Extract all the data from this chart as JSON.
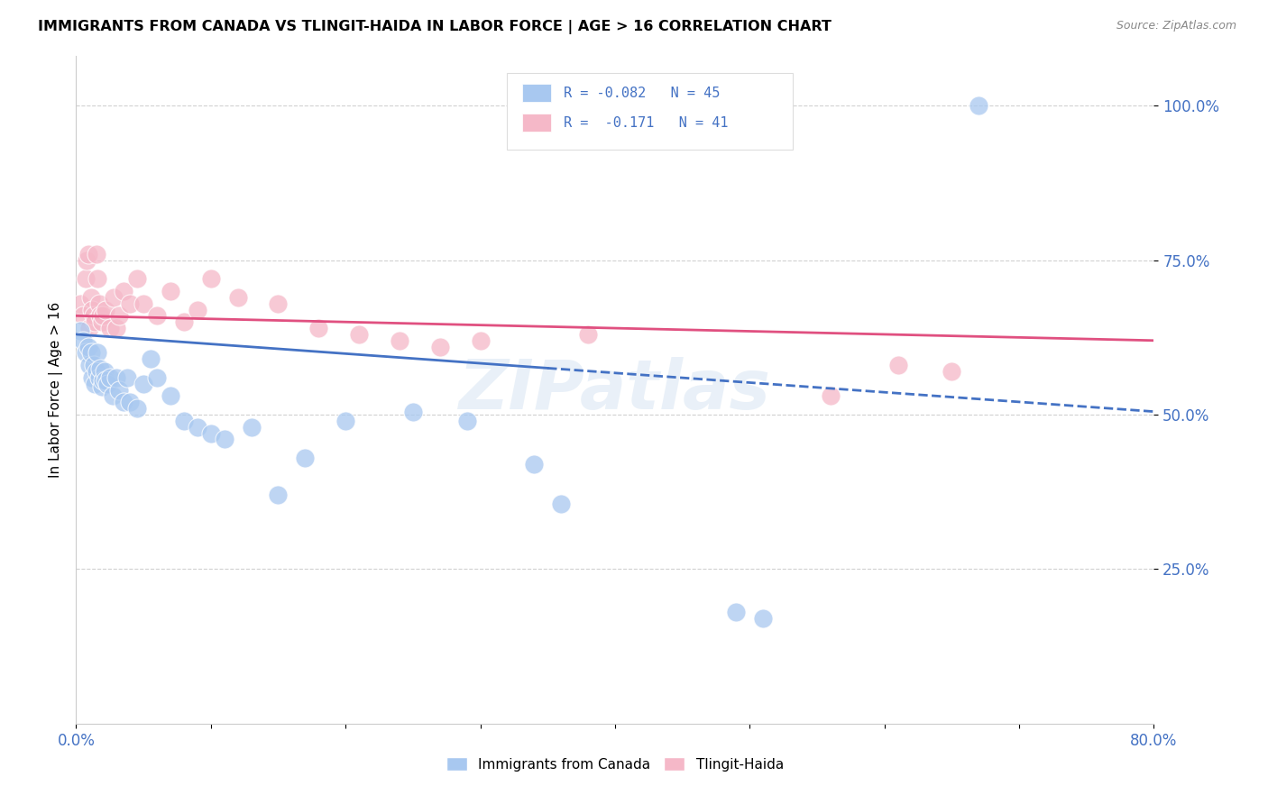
{
  "title": "IMMIGRANTS FROM CANADA VS TLINGIT-HAIDA IN LABOR FORCE | AGE > 16 CORRELATION CHART",
  "source": "Source: ZipAtlas.com",
  "ylabel": "In Labor Force | Age > 16",
  "xlim": [
    0.0,
    0.8
  ],
  "ylim": [
    0.0,
    1.08
  ],
  "yticks": [
    0.25,
    0.5,
    0.75,
    1.0
  ],
  "ytick_labels": [
    "25.0%",
    "50.0%",
    "75.0%",
    "100.0%"
  ],
  "xticks": [
    0.0,
    0.1,
    0.2,
    0.3,
    0.4,
    0.5,
    0.6,
    0.7,
    0.8
  ],
  "xtick_labels": [
    "0.0%",
    "",
    "",
    "",
    "",
    "",
    "",
    "",
    "80.0%"
  ],
  "r_canada": -0.082,
  "n_canada": 45,
  "r_tlingit": -0.171,
  "n_tlingit": 41,
  "blue_color": "#a8c8f0",
  "pink_color": "#f5b8c8",
  "trend_blue": "#4472c4",
  "trend_pink": "#e05080",
  "canada_scatter_x": [
    0.003,
    0.005,
    0.007,
    0.009,
    0.01,
    0.011,
    0.012,
    0.013,
    0.014,
    0.015,
    0.016,
    0.017,
    0.018,
    0.019,
    0.02,
    0.021,
    0.022,
    0.023,
    0.025,
    0.027,
    0.03,
    0.032,
    0.035,
    0.038,
    0.04,
    0.045,
    0.05,
    0.055,
    0.06,
    0.07,
    0.08,
    0.09,
    0.1,
    0.11,
    0.13,
    0.15,
    0.17,
    0.2,
    0.25,
    0.29,
    0.34,
    0.36,
    0.49,
    0.51,
    0.67
  ],
  "canada_scatter_y": [
    0.635,
    0.62,
    0.6,
    0.61,
    0.58,
    0.6,
    0.56,
    0.58,
    0.55,
    0.57,
    0.6,
    0.56,
    0.575,
    0.545,
    0.555,
    0.57,
    0.555,
    0.55,
    0.56,
    0.53,
    0.56,
    0.54,
    0.52,
    0.56,
    0.52,
    0.51,
    0.55,
    0.59,
    0.56,
    0.53,
    0.49,
    0.48,
    0.47,
    0.46,
    0.48,
    0.37,
    0.43,
    0.49,
    0.505,
    0.49,
    0.42,
    0.355,
    0.18,
    0.17,
    1.0
  ],
  "tlingit_scatter_x": [
    0.003,
    0.005,
    0.007,
    0.008,
    0.009,
    0.01,
    0.011,
    0.012,
    0.013,
    0.014,
    0.015,
    0.016,
    0.017,
    0.018,
    0.019,
    0.02,
    0.022,
    0.025,
    0.028,
    0.03,
    0.032,
    0.035,
    0.04,
    0.045,
    0.05,
    0.06,
    0.07,
    0.08,
    0.09,
    0.1,
    0.12,
    0.15,
    0.18,
    0.21,
    0.24,
    0.27,
    0.3,
    0.38,
    0.56,
    0.61,
    0.65
  ],
  "tlingit_scatter_y": [
    0.68,
    0.66,
    0.72,
    0.75,
    0.76,
    0.64,
    0.69,
    0.67,
    0.66,
    0.65,
    0.76,
    0.72,
    0.68,
    0.66,
    0.65,
    0.66,
    0.67,
    0.64,
    0.69,
    0.64,
    0.66,
    0.7,
    0.68,
    0.72,
    0.68,
    0.66,
    0.7,
    0.65,
    0.67,
    0.72,
    0.69,
    0.68,
    0.64,
    0.63,
    0.62,
    0.61,
    0.62,
    0.63,
    0.53,
    0.58,
    0.57
  ],
  "background_color": "#ffffff",
  "grid_color": "#cccccc",
  "axis_color": "#4472c4",
  "watermark": "ZIPatlas",
  "blue_trend_start_x": 0.0,
  "blue_trend_end_solid_x": 0.35,
  "blue_trend_start_y": 0.63,
  "blue_trend_end_y": 0.505,
  "pink_trend_start_y": 0.66,
  "pink_trend_end_y": 0.62
}
